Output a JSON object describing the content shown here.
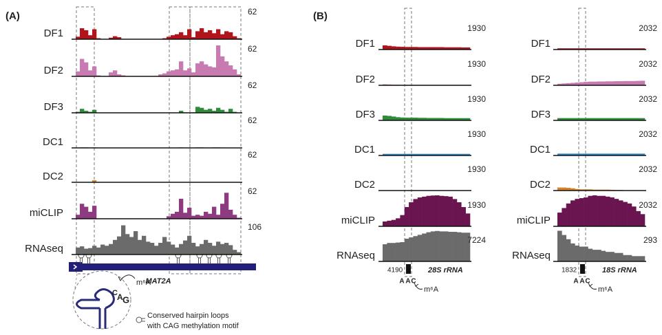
{
  "chart_data": [
    {
      "type": "coverage",
      "panel_label": "(A)",
      "gene": "MAT2A",
      "legend": [
        "Conserved hairpin loops",
        "with CAG methylation motif"
      ],
      "inset": {
        "letters": [
          "C",
          "A",
          "G"
        ],
        "mark": "m⁶A"
      },
      "series": [
        {
          "name": "DF1",
          "color": "#b0151c",
          "ylim": [
            0,
            62
          ],
          "values": [
            5,
            22,
            18,
            8,
            20,
            2,
            0,
            0,
            3,
            6,
            4,
            0,
            0,
            0,
            0,
            0,
            0,
            0,
            0,
            0,
            0,
            2,
            5,
            8,
            10,
            14,
            8,
            20,
            4,
            16,
            22,
            14,
            18,
            12,
            20,
            10,
            16,
            14,
            6,
            2
          ]
        },
        {
          "name": "DF2",
          "color": "#c77bb0",
          "ylim": [
            0,
            62
          ],
          "values": [
            10,
            35,
            28,
            12,
            20,
            2,
            0,
            0,
            8,
            12,
            4,
            2,
            0,
            0,
            0,
            0,
            0,
            0,
            0,
            0,
            4,
            6,
            10,
            12,
            14,
            30,
            12,
            16,
            8,
            26,
            30,
            24,
            20,
            18,
            62,
            40,
            30,
            22,
            14,
            4
          ]
        },
        {
          "name": "DF3",
          "color": "#2e8b3a",
          "ylim": [
            0,
            62
          ],
          "values": [
            2,
            8,
            4,
            2,
            6,
            0,
            0,
            0,
            0,
            0,
            0,
            0,
            0,
            0,
            0,
            0,
            0,
            0,
            0,
            0,
            0,
            0,
            0,
            0,
            0,
            4,
            1,
            0,
            1,
            12,
            10,
            6,
            8,
            4,
            10,
            6,
            2,
            8,
            2,
            0
          ]
        },
        {
          "name": "DC1",
          "color": "#2a86c8",
          "ylim": [
            0,
            62
          ],
          "values": [
            0,
            1,
            1,
            0,
            1,
            0,
            0,
            0,
            0,
            0,
            0,
            0,
            0,
            0,
            0,
            0,
            0,
            0,
            0,
            0,
            0,
            0,
            0,
            0,
            0,
            1,
            0,
            0,
            0,
            1,
            1,
            0,
            0,
            1,
            1,
            0,
            0,
            0,
            0,
            0
          ]
        },
        {
          "name": "DC2",
          "color": "#d9822b",
          "ylim": [
            0,
            62
          ],
          "values": [
            0,
            0,
            0,
            0,
            4,
            0,
            0,
            0,
            0,
            0,
            0,
            0,
            0,
            0,
            0,
            0,
            0,
            0,
            0,
            0,
            0,
            0,
            0,
            0,
            0,
            0,
            0,
            0,
            0,
            0,
            0,
            0,
            0,
            0,
            0,
            0,
            0,
            0,
            0,
            0
          ]
        },
        {
          "name": "miCLIP",
          "color": "#8e3a80",
          "ylim": [
            0,
            62
          ],
          "values": [
            8,
            30,
            24,
            14,
            26,
            0,
            0,
            0,
            0,
            0,
            0,
            0,
            0,
            0,
            0,
            0,
            0,
            0,
            0,
            0,
            0,
            0,
            5,
            10,
            14,
            40,
            12,
            22,
            6,
            8,
            6,
            14,
            10,
            24,
            8,
            30,
            52,
            18,
            8,
            2
          ]
        },
        {
          "name": "RNAseq",
          "color": "#6b6b6b",
          "ylim": [
            0,
            106
          ],
          "values": [
            24,
            28,
            20,
            22,
            30,
            24,
            34,
            30,
            36,
            50,
            62,
            100,
            70,
            60,
            80,
            50,
            64,
            44,
            40,
            30,
            40,
            60,
            44,
            34,
            24,
            36,
            48,
            64,
            40,
            28,
            36,
            50,
            40,
            30,
            44,
            36,
            40,
            32,
            16,
            8
          ]
        }
      ]
    },
    {
      "type": "coverage",
      "panel_label": "(B)",
      "gene": "28S rRNA",
      "start_position": 4190,
      "motif": [
        "A",
        "A",
        "C"
      ],
      "mark": "m⁶A",
      "series": [
        {
          "name": "DF1",
          "color": "#b0151c",
          "ylim": [
            0,
            1930
          ],
          "values": [
            260,
            230,
            200,
            180,
            170,
            160,
            160,
            160,
            150,
            150,
            150,
            150,
            150,
            150,
            140,
            140,
            140,
            140,
            130,
            130
          ]
        },
        {
          "name": "DF2",
          "color": "#c77bb0",
          "ylim": [
            0,
            1930
          ],
          "values": [
            60,
            50,
            40,
            40,
            30,
            30,
            30,
            30,
            30,
            30,
            30,
            30,
            30,
            30,
            30,
            30,
            30,
            30,
            30,
            30
          ]
        },
        {
          "name": "DF3",
          "color": "#2e8b3a",
          "ylim": [
            0,
            1930
          ],
          "values": [
            300,
            280,
            240,
            200,
            180,
            170,
            170,
            170,
            160,
            160,
            150,
            150,
            150,
            150,
            140,
            140,
            140,
            140,
            140,
            140
          ]
        },
        {
          "name": "DC1",
          "color": "#2a86c8",
          "ylim": [
            0,
            1930
          ],
          "values": [
            100,
            100,
            100,
            100,
            100,
            100,
            100,
            100,
            100,
            100,
            100,
            100,
            100,
            100,
            100,
            100,
            100,
            100,
            100,
            100
          ]
        },
        {
          "name": "DC2",
          "color": "#d9822b",
          "ylim": [
            0,
            1930
          ],
          "values": [
            0,
            0,
            0,
            0,
            0,
            20,
            20,
            20,
            20,
            20,
            20,
            20,
            20,
            20,
            20,
            20,
            20,
            20,
            20,
            20
          ]
        },
        {
          "name": "miCLIP",
          "color": "#6b1550",
          "ylim": [
            0,
            1930
          ],
          "values": [
            300,
            350,
            400,
            500,
            700,
            1200,
            1500,
            1700,
            1800,
            1850,
            1900,
            1920,
            1930,
            1900,
            1880,
            1850,
            1700,
            1500,
            1200,
            800
          ]
        },
        {
          "name": "RNAseq",
          "color": "#6b6b6b",
          "ylim": [
            0,
            7224
          ],
          "values": [
            4000,
            4300,
            4300,
            4400,
            4500,
            5300,
            5600,
            5900,
            6200,
            6500,
            6800,
            7000,
            7100,
            7000,
            7000,
            6900,
            6900,
            6800,
            6700,
            6700
          ]
        }
      ]
    },
    {
      "type": "coverage",
      "gene": "18S rRNA",
      "start_position": 1832,
      "motif": [
        "A",
        "A",
        "C"
      ],
      "mark": "m⁶A",
      "series": [
        {
          "name": "DF1",
          "color": "#b0151c",
          "ylim": [
            0,
            2032
          ],
          "values": [
            80,
            80,
            80,
            80,
            80,
            80,
            80,
            80,
            80,
            80,
            80,
            80,
            80,
            80,
            80,
            80,
            80,
            80,
            80,
            80
          ]
        },
        {
          "name": "DF2",
          "color": "#c77bb0",
          "ylim": [
            0,
            2032
          ],
          "values": [
            100,
            120,
            140,
            160,
            180,
            200,
            220,
            240,
            240,
            250,
            250,
            260,
            260,
            270,
            270,
            280,
            280,
            280,
            290,
            300
          ]
        },
        {
          "name": "DF3",
          "color": "#2e8b3a",
          "ylim": [
            0,
            2032
          ],
          "values": [
            150,
            150,
            150,
            150,
            150,
            150,
            150,
            150,
            150,
            150,
            150,
            150,
            150,
            150,
            150,
            150,
            150,
            150,
            150,
            150
          ]
        },
        {
          "name": "DC1",
          "color": "#2a86c8",
          "ylim": [
            0,
            2032
          ],
          "values": [
            120,
            120,
            120,
            120,
            120,
            120,
            120,
            120,
            120,
            120,
            120,
            120,
            120,
            120,
            120,
            120,
            120,
            120,
            120,
            120
          ]
        },
        {
          "name": "DC2",
          "color": "#d9822b",
          "ylim": [
            0,
            2032
          ],
          "values": [
            200,
            200,
            180,
            150,
            100,
            80,
            80,
            80,
            60,
            60,
            60,
            60,
            50,
            40,
            40,
            0,
            0,
            0,
            0,
            0
          ]
        },
        {
          "name": "miCLIP",
          "color": "#6b1550",
          "ylim": [
            0,
            2032
          ],
          "values": [
            900,
            1200,
            1500,
            1700,
            1800,
            1850,
            1900,
            2000,
            2032,
            2000,
            2000,
            1950,
            1900,
            1800,
            1700,
            1600,
            1500,
            1300,
            1000,
            800
          ]
        },
        {
          "name": "RNAseq",
          "color": "#6b6b6b",
          "ylim": [
            0,
            293
          ],
          "values": [
            290,
            250,
            210,
            170,
            150,
            140,
            140,
            120,
            110,
            110,
            100,
            90,
            90,
            80,
            80,
            60,
            60,
            50,
            50,
            50
          ]
        }
      ]
    }
  ]
}
